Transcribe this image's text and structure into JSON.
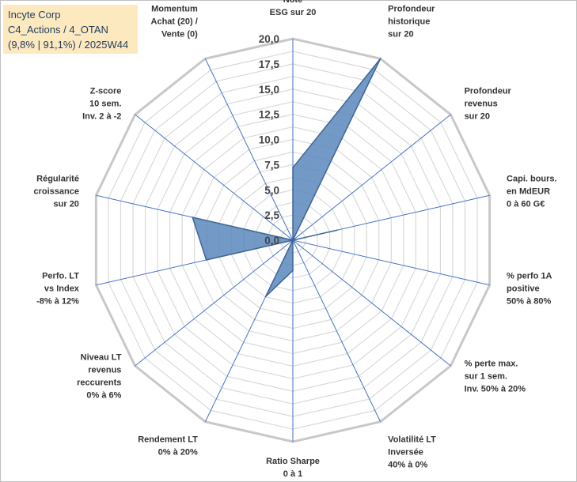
{
  "info_box": {
    "line1": "Incyte Corp",
    "line2": "C4_Actions / 4_OTAN",
    "line3": "(9,8% | 91,1%) / 2025W44"
  },
  "chart_data": {
    "type": "radar",
    "title": "",
    "rmin": 0,
    "rmax": 20,
    "tick_step": 2.5,
    "tick_labels": [
      "0,0",
      "2,5",
      "5,0",
      "7,5",
      "10,0",
      "12,5",
      "15,0",
      "17,5",
      "20,0"
    ],
    "grid": true,
    "colors": {
      "fill": "#5b87bd",
      "stroke": "#3e6596",
      "grid": "#d9d9d9",
      "spoke": "#4472c4"
    },
    "axes": [
      [
        "Note",
        "ESG sur 20"
      ],
      [
        "Profondeur",
        "historique",
        "sur 20"
      ],
      [
        "Profondeur",
        "revenus",
        "sur 20"
      ],
      [
        "Capi. bours.",
        "en MdEUR",
        "0 à 60 G€"
      ],
      [
        "% perfo 1A",
        "positive",
        "50% à 80%"
      ],
      [
        "% perte max.",
        "sur 1 sem.",
        "Inv. 50% à 20%"
      ],
      [
        "Volatilité LT",
        "Inversée",
        "40% à 0%"
      ],
      [
        "Ratio Sharpe",
        "0 à 1"
      ],
      [
        "Rendement LT",
        "0% à 20%"
      ],
      [
        "Niveau LT",
        "revenus",
        "reccurents",
        "0% à 6%"
      ],
      [
        "Perfo. LT",
        "vs Index",
        "-8% à 12%"
      ],
      [
        "Régularité",
        "croissance",
        "sur 20"
      ],
      [
        "Z-score",
        "10 sem.",
        "Inv. 2 à -2"
      ],
      [
        "Momentum",
        "Achat (20) /",
        "Vente (0)"
      ]
    ],
    "values": [
      7.2,
      20.0,
      0.0,
      4.5,
      0.0,
      0.0,
      0.0,
      3.0,
      6.2,
      0.0,
      8.8,
      10.2,
      0.0,
      0.0
    ]
  }
}
